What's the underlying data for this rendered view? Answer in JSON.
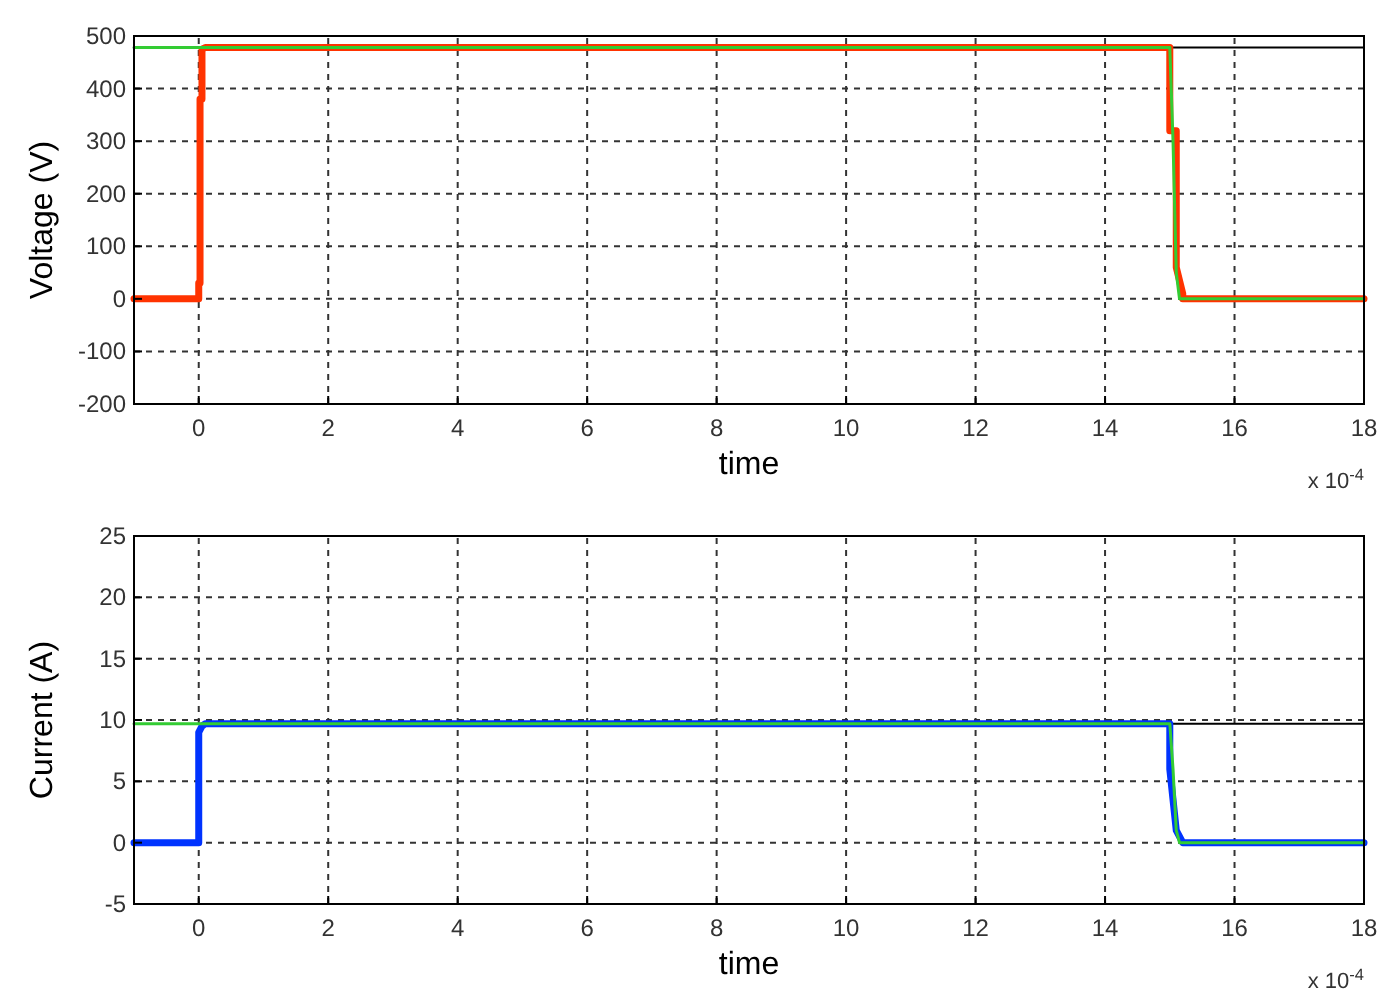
{
  "chart_data": [
    {
      "type": "line",
      "xlabel": "time",
      "ylabel": "Voltage (V)",
      "xlim": [
        -1,
        18
      ],
      "xticks": [
        0,
        2,
        4,
        6,
        8,
        10,
        12,
        14,
        16,
        18
      ],
      "ylim": [
        -200,
        500
      ],
      "yticks": [
        -200,
        -100,
        0,
        100,
        200,
        300,
        400,
        500
      ],
      "grid": true,
      "line_style": "solid",
      "annotations": [
        "x 10$^{-4}$"
      ],
      "series": [
        {
          "color": "#000000",
          "x": [
            15,
            18
          ],
          "values": [
            478,
            478
          ]
        },
        {
          "color": "#ff3300",
          "x": [
            -1,
            0,
            0,
            0.02,
            0.02,
            0.05,
            0.05,
            0.1,
            15,
            15,
            15.1,
            15.1,
            15.2,
            15.2,
            18
          ],
          "values": [
            0,
            0,
            30,
            30,
            380,
            380,
            475,
            478,
            478,
            320,
            320,
            60,
            10,
            0,
            0
          ]
        },
        {
          "color": "#33cc33",
          "x": [
            -1,
            15,
            15.05,
            15.1,
            15.15,
            18
          ],
          "values": [
            478,
            478,
            300,
            50,
            0,
            0
          ]
        }
      ]
    },
    {
      "type": "line",
      "xlabel": "time",
      "ylabel": "Current (A)",
      "xlim": [
        -1,
        18
      ],
      "xticks": [
        0,
        2,
        4,
        6,
        8,
        10,
        12,
        14,
        16,
        18
      ],
      "ylim": [
        -5,
        25
      ],
      "yticks": [
        -5,
        0,
        5,
        10,
        15,
        20,
        25
      ],
      "grid": true,
      "line_style": "solid",
      "annotations": [
        "x 10$^{-4}$"
      ],
      "series": [
        {
          "color": "#000000",
          "x": [
            15,
            18
          ],
          "values": [
            9.7,
            9.7
          ]
        },
        {
          "color": "#0033ff",
          "x": [
            -1,
            0,
            0,
            0.05,
            0.1,
            15,
            15,
            15.1,
            15.2,
            18
          ],
          "values": [
            0,
            0,
            9,
            9.5,
            9.7,
            9.7,
            6,
            1,
            0,
            0
          ]
        },
        {
          "color": "#33cc33",
          "x": [
            -1,
            15,
            15.05,
            15.1,
            15.15,
            18
          ],
          "values": [
            9.7,
            9.7,
            6,
            1,
            0,
            0
          ]
        }
      ]
    }
  ]
}
